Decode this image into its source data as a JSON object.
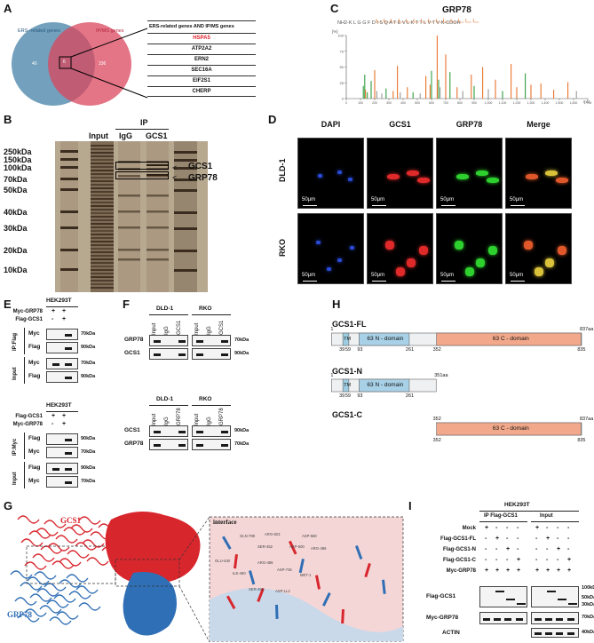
{
  "labels": {
    "a": "A",
    "b": "B",
    "c": "C",
    "d": "D",
    "e": "E",
    "f": "F",
    "g": "G",
    "h": "H",
    "i": "I"
  },
  "panel_a": {
    "ers_label": "ERS−related genes",
    "ipms_label": "IP/MS genes",
    "left_count": "40",
    "overlap_count": "6",
    "right_count": "336",
    "table_header": "ERS-related genes AND IP/MS genes",
    "genes": [
      "HSPA5",
      "ATP2A2",
      "ERN2",
      "SEC16A",
      "EIF2S1",
      "CHERP"
    ],
    "highlight_color": "#e4202c",
    "venn_left_color": "#5b8fb0",
    "venn_right_color": "#d9475e"
  },
  "panel_b": {
    "col_input": "Input",
    "col_ip": "IP",
    "col_igg": "IgG",
    "col_gcs1": "GCS1",
    "markers": [
      "250kDa",
      "150kDa",
      "100kDa",
      "70kDa",
      "50kDa",
      "40kDa",
      "30kDa",
      "20kDa",
      "10kDa"
    ],
    "gcs1_label": "GCS1",
    "grp78_label": "GRP78"
  },
  "panel_c": {
    "title": "GRP78",
    "sequence": "NH2-K L G G F D I S Q A T E V L K T T L V T V K-COOH",
    "y_unit": "[%]",
    "x_unit": "m/z",
    "y_ticks": [
      "100",
      "75",
      "50",
      "25",
      "0"
    ],
    "x_ticks": [
      "0",
      "100",
      "200",
      "300",
      "400",
      "500",
      "600",
      "700",
      "800",
      "900",
      "1,000",
      "1,100",
      "1,200",
      "1,300",
      "1,400",
      "1,500",
      "1,600",
      "1,700"
    ],
    "orange": "#e8742a",
    "green": "#2f9e3e",
    "gray": "#999999"
  },
  "panel_d": {
    "cols": [
      "DAPI",
      "GCS1",
      "GRP78",
      "Merge"
    ],
    "rows": [
      "DLD-1",
      "RKO"
    ],
    "scale": "50μm"
  },
  "panel_e": {
    "cell_line": "HEK293T",
    "top": {
      "rows": [
        "Myc-GRP78",
        "Flag-GCS1"
      ],
      "signs": [
        [
          "+",
          "+"
        ],
        [
          "-",
          "+"
        ]
      ],
      "group_ip": "IP:Flag",
      "group_in": "Input",
      "blots": [
        "Myc",
        "Flag",
        "Myc",
        "Flag"
      ],
      "sizes": [
        "70kDa",
        "90kDa",
        "70kDa",
        "90kDa"
      ]
    },
    "bottom": {
      "rows": [
        "Flag-GCS1",
        "Myc-GRP78"
      ],
      "signs": [
        [
          "+",
          "+"
        ],
        [
          "-",
          "+"
        ]
      ],
      "group_ip": "IP:Myc",
      "group_in": "Input",
      "blots": [
        "Flag",
        "Myc",
        "Flag",
        "Myc"
      ],
      "sizes": [
        "90kDa",
        "70kDa",
        "90kDa",
        "70kDa"
      ]
    }
  },
  "panel_f": {
    "top": {
      "lines": [
        "DLD-1",
        "RKO"
      ],
      "lanes": [
        "Input",
        "IgG",
        "GCS1"
      ],
      "blots": [
        "GRP78",
        "GCS1"
      ],
      "sizes": [
        "70kDa",
        "90kDa"
      ]
    },
    "bottom": {
      "lines": [
        "DLD-1",
        "RKO"
      ],
      "lanes": [
        "Input",
        "IgG",
        "GRP78"
      ],
      "blots": [
        "GCS1",
        "GRP78"
      ],
      "sizes": [
        "90kDa",
        "70kDa"
      ]
    }
  },
  "panel_g": {
    "gcs1": "GCS1",
    "grp78": "GRP78",
    "interface": "interface",
    "residues": [
      "GLN-799",
      "ARG-823",
      "SER-452",
      "ASP-500",
      "ASP-580",
      "ARG-496",
      "GLU-430",
      "ILE-450",
      "ARG-486",
      "ASP-745",
      "MET-1",
      "SER-452",
      "ASP-LL2"
    ],
    "red": "#d8262d",
    "blue": "#2f6fb5"
  },
  "panel_h": {
    "fl_title": "GCS1-FL",
    "n_title": "GCS1-N",
    "c_title": "GCS1-C",
    "tm": "TM",
    "n_domain": "63 N - domain",
    "c_domain": "63 C - domain",
    "fl_end": "837aa",
    "n_end": "351aa",
    "c_end": "837aa",
    "pos1": "1",
    "pos39": "39",
    "pos59": "59",
    "pos93": "93",
    "pos261": "261",
    "pos352": "352",
    "pos835": "835",
    "tm_color": "#9dcde2",
    "n_color": "#a8d0e6",
    "c_color": "#f2a88a"
  },
  "panel_i": {
    "cell_line": "HEK293T",
    "ip_label": "IP Flag-GCS1",
    "input_label": "Input",
    "rows": [
      "Mock",
      "Flag-GCS1-FL",
      "Flag-GCS1-N",
      "Flag-GCS1-C",
      "Myc-GRP78"
    ],
    "ip_signs": [
      [
        "+",
        "-",
        "-",
        "-"
      ],
      [
        "-",
        "+",
        "-",
        "-"
      ],
      [
        "-",
        "-",
        "+",
        "-"
      ],
      [
        "-",
        "-",
        "-",
        "+"
      ],
      [
        "+",
        "+",
        "+",
        "+"
      ]
    ],
    "in_signs": [
      [
        "+",
        "-",
        "-",
        "-"
      ],
      [
        "-",
        "+",
        "-",
        "-"
      ],
      [
        "-",
        "-",
        "+",
        "-"
      ],
      [
        "-",
        "-",
        "-",
        "+"
      ],
      [
        "+",
        "+",
        "+",
        "+"
      ]
    ],
    "blots": [
      "Flag-GCS1",
      "Myc-GRP78",
      "ACTIN"
    ],
    "sizes": [
      "100kDa",
      "50kDa",
      "30kDa",
      "70kDa",
      "40kDa"
    ]
  }
}
